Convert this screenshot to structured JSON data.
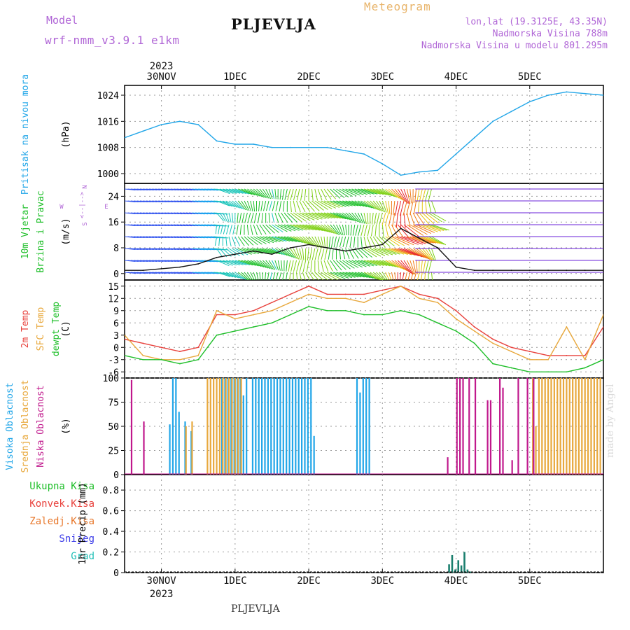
{
  "header": {
    "model_label": "Model",
    "model_name": "wrf-nmm_v3.9.1  e1km",
    "station": "PLJEVLJA",
    "title": "Meteogram",
    "coords": "lon,lat (19.3125E, 43.35N)",
    "elevation": "Nadmorska Visina 788m",
    "model_elevation": "Nadmorska Visina u modelu 801.295m"
  },
  "footer": {
    "station": "PLJEVLJA",
    "credit": "made by Angel"
  },
  "x_axis": {
    "year": "2023",
    "days": [
      "30NOV",
      "1DEC",
      "2DEC",
      "3DEC",
      "4DEC",
      "5DEC"
    ]
  },
  "panels": [
    {
      "id": "pressure",
      "labels": [
        {
          "text": "Pritisak na nivou mora",
          "color": "#22a6e8"
        }
      ],
      "unit": "(hPa)",
      "ticks": [
        "1024",
        "1016",
        "1008",
        "1000"
      ]
    },
    {
      "id": "wind",
      "labels": [
        {
          "text": "10m Vjetar",
          "color": "#1fbf2a"
        },
        {
          "text": "Brzina i Pravac",
          "color": "#1fbf2a"
        }
      ],
      "unit": "(m/s)",
      "ticks": [
        "24",
        "16",
        "8",
        "0"
      ],
      "compass": {
        "n": "N",
        "s": "S",
        "e": "E",
        "w": "W",
        "arrow": "<--|-->"
      }
    },
    {
      "id": "temp",
      "labels": [
        {
          "text": "2m Temp",
          "color": "#e8413c"
        },
        {
          "text": "SFC Temp",
          "color": "#e8a83c"
        },
        {
          "text": "dewpt Temp",
          "color": "#1fbf2a"
        }
      ],
      "unit": "(C)",
      "ticks": [
        "15",
        "12",
        "9",
        "6",
        "3",
        "0",
        "-3",
        "-6"
      ]
    },
    {
      "id": "cloud",
      "labels": [
        {
          "text": "Visoka Oblacnost",
          "color": "#22a6e8"
        },
        {
          "text": "Srednja Oblacnost",
          "color": "#e8a83c"
        },
        {
          "text": "Niska Oblacnost",
          "color": "#c0188c"
        }
      ],
      "unit": "(%)",
      "ticks": [
        "100",
        "75",
        "50",
        "25",
        "0"
      ]
    },
    {
      "id": "precip",
      "labels": [
        {
          "text": "Ukupna Kisa",
          "color": "#1fbf2a"
        },
        {
          "text": "Konvek.Kisa",
          "color": "#e8413c"
        },
        {
          "text": "Zaledj.Kisa",
          "color": "#e8782c"
        },
        {
          "text": "Snijeg",
          "color": "#3c3ce8"
        },
        {
          "text": "Grad",
          "color": "#22c0b8"
        }
      ],
      "unit": "1hr Precip (mm)",
      "ticks": [
        "0.8",
        "0.6",
        "0.4",
        "0.2",
        "0"
      ]
    }
  ],
  "chart_data": [
    {
      "type": "line",
      "title": "Pritisak na nivou mora",
      "ylabel": "(hPa)",
      "ylim": [
        997,
        1027
      ],
      "x_unit": "hours from 29NOV 12UTC",
      "xlim": [
        0,
        156
      ],
      "series": [
        {
          "name": "Pritisak na nivou mora",
          "color": "#22a6e8",
          "x": [
            0,
            6,
            12,
            18,
            24,
            30,
            36,
            42,
            48,
            54,
            60,
            66,
            72,
            78,
            84,
            90,
            96,
            102,
            108,
            114,
            120,
            126,
            132,
            138,
            144,
            150,
            156
          ],
          "values": [
            1011,
            1013,
            1015,
            1016,
            1015,
            1010,
            1009,
            1009,
            1008,
            1008,
            1008,
            1008,
            1007,
            1006,
            1003,
            999.5,
            1000.5,
            1001,
            1006,
            1011,
            1016,
            1019,
            1022,
            1024,
            1025,
            1024.5,
            1024
          ]
        }
      ]
    },
    {
      "type": "line",
      "title": "10m Vjetar Brzina i Pravac",
      "ylabel": "(m/s)",
      "ylim": [
        -2,
        28
      ],
      "x_unit": "hours from 29NOV 12UTC",
      "xlim": [
        0,
        156
      ],
      "series": [
        {
          "name": "Brzina",
          "color": "#111111",
          "x": [
            0,
            6,
            12,
            18,
            24,
            30,
            36,
            42,
            48,
            54,
            60,
            66,
            72,
            78,
            84,
            90,
            96,
            102,
            108,
            114,
            120,
            126,
            132,
            138,
            144,
            150,
            156
          ],
          "values": [
            1,
            1,
            1.5,
            2,
            3,
            5,
            6,
            7,
            6,
            8,
            9,
            8,
            7,
            8,
            9,
            14,
            11,
            8,
            2,
            1,
            1,
            1,
            1,
            1,
            1,
            1,
            1
          ]
        }
      ]
    },
    {
      "type": "line",
      "title": "2m Temp / SFC Temp / dewpt Temp",
      "ylabel": "(C)",
      "ylim": [
        -7.5,
        16.5
      ],
      "x_unit": "hours from 29NOV 12UTC",
      "xlim": [
        0,
        156
      ],
      "series": [
        {
          "name": "2m Temp",
          "color": "#e8413c",
          "x": [
            0,
            6,
            12,
            18,
            24,
            30,
            36,
            42,
            48,
            54,
            60,
            66,
            72,
            78,
            84,
            90,
            96,
            102,
            108,
            114,
            120,
            126,
            132,
            138,
            144,
            150,
            156
          ],
          "values": [
            2,
            1,
            0,
            -1,
            0,
            8,
            8,
            9,
            11,
            13,
            15,
            13,
            13,
            13,
            14,
            15,
            13,
            12,
            9,
            5,
            2,
            0,
            -1,
            -2,
            -2,
            -2,
            5
          ]
        },
        {
          "name": "SFC Temp",
          "color": "#e8a83c",
          "x": [
            0,
            6,
            12,
            18,
            24,
            30,
            36,
            42,
            48,
            54,
            60,
            66,
            72,
            78,
            84,
            90,
            96,
            102,
            108,
            114,
            120,
            126,
            132,
            138,
            144,
            150,
            156
          ],
          "values": [
            3,
            -2,
            -3,
            -3,
            -2,
            9,
            7,
            8,
            9,
            11,
            13,
            12,
            12,
            11,
            13,
            15,
            12,
            11,
            7,
            4,
            1,
            -1,
            -3,
            -3,
            5,
            -3,
            8
          ]
        },
        {
          "name": "dewpt Temp",
          "color": "#1fbf2a",
          "x": [
            0,
            6,
            12,
            18,
            24,
            30,
            36,
            42,
            48,
            54,
            60,
            66,
            72,
            78,
            84,
            90,
            96,
            102,
            108,
            114,
            120,
            126,
            132,
            138,
            144,
            150,
            156
          ],
          "values": [
            -2,
            -3,
            -3,
            -4,
            -3,
            3,
            4,
            5,
            6,
            8,
            10,
            9,
            9,
            8,
            8,
            9,
            8,
            6,
            4,
            1,
            -4,
            -5,
            -6,
            -6,
            -6,
            -5,
            -3
          ]
        }
      ]
    },
    {
      "type": "bar",
      "title": "Oblacnost",
      "ylabel": "(%)",
      "ylim": [
        0,
        100
      ],
      "x_unit": "hours from 29NOV 12UTC",
      "xlim": [
        0,
        156
      ],
      "series": [
        {
          "name": "Visoka Oblacnost",
          "color": "#22a6e8",
          "x": [
            15,
            16,
            17,
            18,
            19,
            20,
            21,
            22,
            23,
            24,
            25,
            26,
            27,
            28,
            29,
            30,
            31,
            32,
            33,
            34,
            35,
            36,
            37,
            38,
            39,
            40,
            41,
            42,
            43,
            44,
            45,
            46,
            47,
            48,
            49,
            50,
            51,
            52,
            53,
            54,
            55,
            56,
            57,
            58,
            59,
            60,
            61,
            62,
            63,
            64,
            65,
            76,
            77,
            78,
            79,
            80
          ],
          "values": [
            52,
            100,
            100,
            65,
            0,
            55,
            0,
            45,
            0,
            0,
            0,
            0,
            0,
            0,
            0,
            0,
            0,
            100,
            100,
            100,
            100,
            100,
            100,
            100,
            82,
            100,
            0,
            100,
            100,
            100,
            100,
            100,
            100,
            100,
            100,
            100,
            100,
            100,
            100,
            100,
            100,
            100,
            100,
            100,
            100,
            100,
            100,
            40,
            0,
            0,
            0,
            100,
            85,
            100,
            100,
            100
          ]
        },
        {
          "name": "Srednja Oblacnost",
          "color": "#e8a83c",
          "x": [
            20,
            22,
            23,
            27,
            28,
            29,
            30,
            31,
            32,
            33,
            34,
            35,
            36,
            37,
            38,
            133,
            134,
            135,
            136,
            137,
            138,
            139,
            140,
            141,
            142,
            143,
            144,
            145,
            146,
            147,
            148,
            149,
            150,
            151,
            152,
            153,
            154,
            155
          ],
          "values": [
            50,
            55,
            0,
            100,
            100,
            100,
            100,
            100,
            100,
            100,
            100,
            100,
            100,
            100,
            100,
            100,
            50,
            100,
            100,
            100,
            100,
            100,
            100,
            100,
            100,
            100,
            100,
            100,
            100,
            100,
            100,
            100,
            100,
            100,
            100,
            100,
            100,
            100
          ]
        },
        {
          "name": "Niska Oblacnost",
          "color": "#c0188c",
          "x": [
            2,
            6,
            7,
            105,
            108,
            109,
            110,
            112,
            114,
            118,
            119,
            122,
            123,
            126,
            128,
            131,
            133
          ],
          "values": [
            98,
            55,
            0,
            18,
            100,
            100,
            100,
            100,
            100,
            77,
            77,
            100,
            90,
            15,
            100,
            100,
            100
          ]
        }
      ]
    },
    {
      "type": "bar",
      "title": "1hr Precip",
      "ylabel": "(mm)",
      "ylim": [
        0,
        0.95
      ],
      "x_unit": "hours from 29NOV 12UTC",
      "xlim": [
        0,
        156
      ],
      "series": [
        {
          "name": "Ukupna Kisa",
          "color": "#1b7f6e",
          "x": [
            106,
            107,
            108,
            109,
            110,
            111,
            112,
            113
          ],
          "values": [
            0.08,
            0.17,
            0.03,
            0.12,
            0.07,
            0.2,
            0.03,
            0.01
          ]
        }
      ]
    }
  ]
}
